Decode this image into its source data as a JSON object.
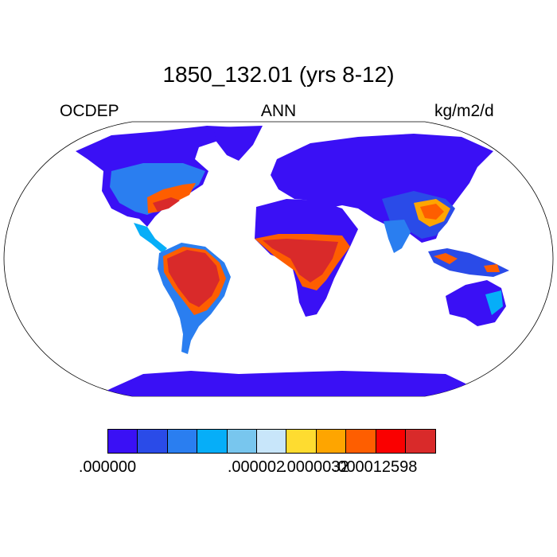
{
  "plot": {
    "title": "1850_132.01 (yrs 8-12)",
    "left_label": "OCDEP",
    "center_label": "ANN",
    "right_label": "kg/m2/d"
  },
  "colorbar": {
    "colors": [
      "#3a10f5",
      "#2a4be8",
      "#2a7ef0",
      "#06aef8",
      "#78c6ee",
      "#c8e6fa",
      "#fedc30",
      "#fea500",
      "#fe5e00",
      "#fa0000",
      "#d92a2a"
    ],
    "tick_labels": [
      {
        "text": ".000000",
        "boundary": 0
      },
      {
        "text": ".000002",
        "boundary": 5
      },
      {
        "text": ".0000032",
        "boundary": 7
      },
      {
        "text": ".000012598",
        "boundary": 9
      }
    ]
  }
}
